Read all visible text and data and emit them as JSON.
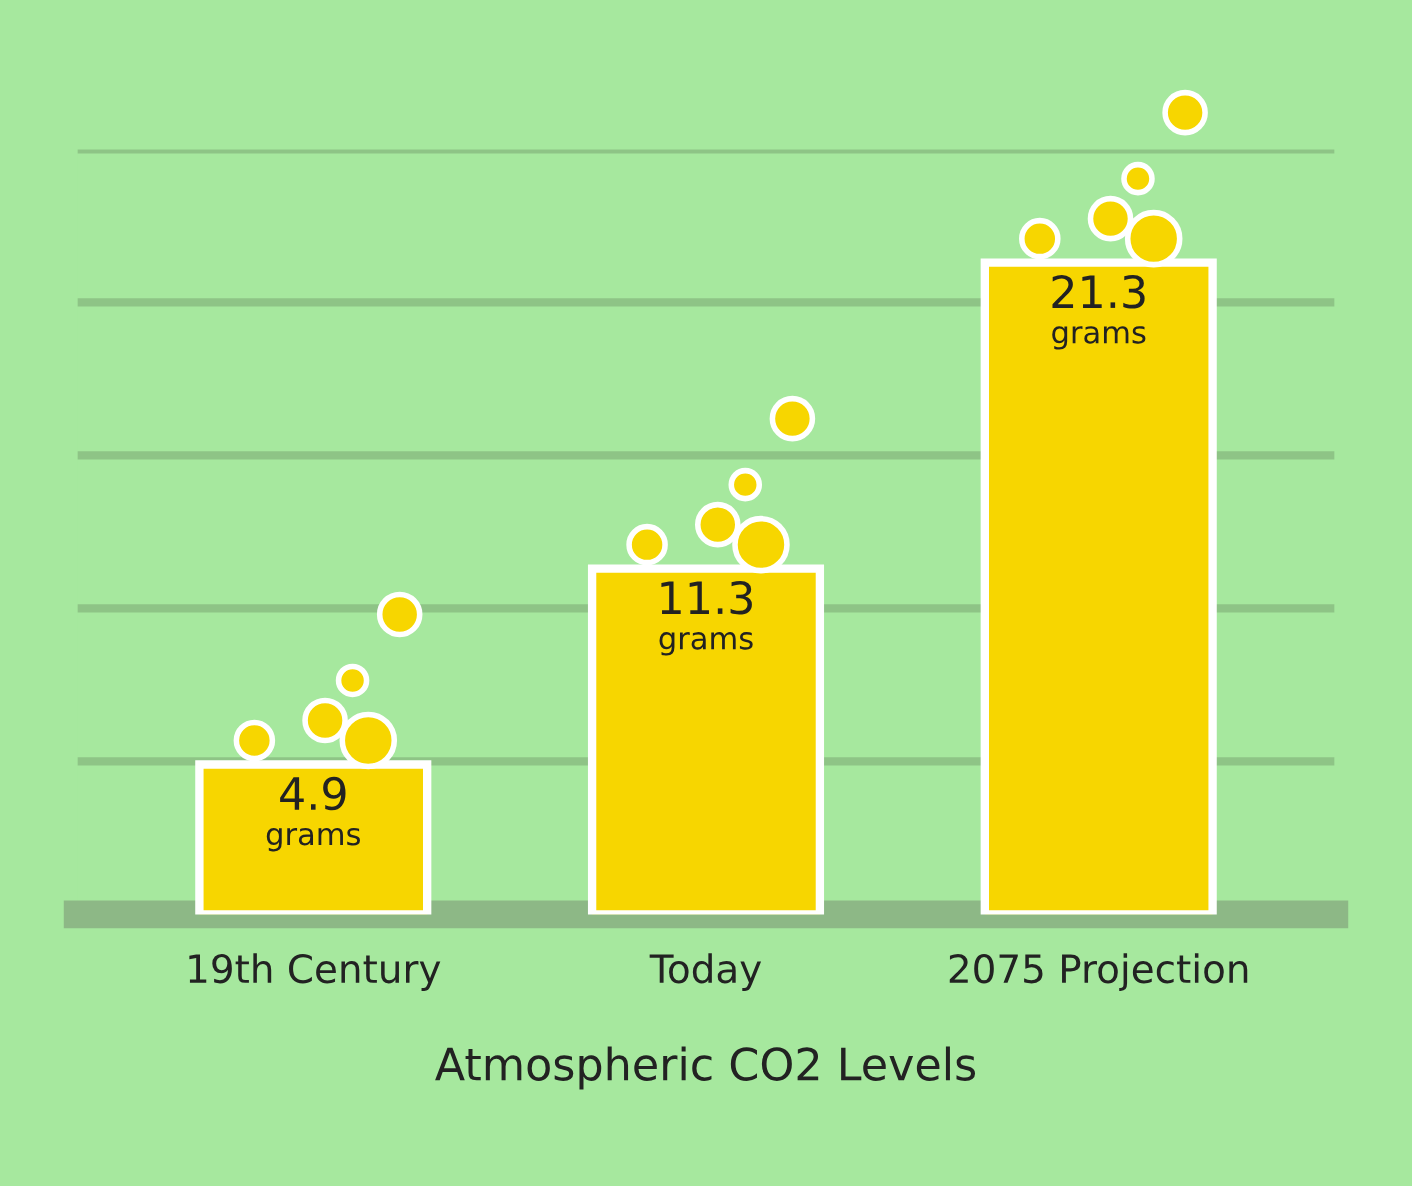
{
  "chart_data": {
    "type": "bar",
    "xlabel": "Atmospheric CO2 Levels",
    "categories": [
      "19th Century",
      "Today",
      "2075 Projection"
    ],
    "values": [
      4.9,
      11.3,
      21.3
    ],
    "value_labels": [
      "4.9\ngrams",
      "11.3\ngrams",
      "21.3\ngrams"
    ],
    "color": "#f7d600",
    "ylim": [
      0,
      25
    ],
    "yticks": [
      5,
      10,
      15,
      20,
      25
    ],
    "tick_labels": "x",
    "grid": "y"
  }
}
